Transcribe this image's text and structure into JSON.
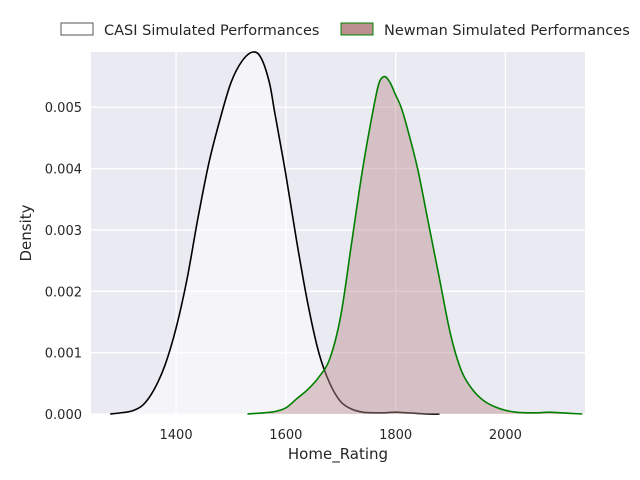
{
  "chart_data": {
    "type": "area",
    "title": "",
    "xlabel": "Home_Rating",
    "ylabel": "Density",
    "xlim": [
      1245,
      2145
    ],
    "ylim": [
      0,
      0.0059
    ],
    "xticks": [
      1400,
      1600,
      1800,
      2000
    ],
    "yticks": [
      0.0,
      0.001,
      0.002,
      0.003,
      0.004,
      0.005
    ],
    "ytick_labels": [
      "0.000",
      "0.001",
      "0.002",
      "0.003",
      "0.004",
      "0.005"
    ],
    "grid": true,
    "legend_position": "top",
    "series": [
      {
        "name": "CASI Simulated Performances",
        "line_color": "#000000",
        "fill_color": "#ffffff",
        "fill_opacity": 0.5,
        "x": [
          1280,
          1300,
          1320,
          1340,
          1360,
          1380,
          1400,
          1420,
          1440,
          1460,
          1480,
          1500,
          1520,
          1540,
          1555,
          1570,
          1580,
          1600,
          1620,
          1640,
          1660,
          1680,
          1700,
          1720,
          1740,
          1760,
          1780,
          1800,
          1820,
          1840,
          1860,
          1880
        ],
        "y": [
          0.0,
          2e-05,
          5e-05,
          0.00015,
          0.0004,
          0.0008,
          0.0014,
          0.0022,
          0.0032,
          0.0041,
          0.0048,
          0.0054,
          0.00575,
          0.0059,
          0.0058,
          0.0054,
          0.0049,
          0.0039,
          0.0028,
          0.0018,
          0.001,
          0.0005,
          0.0002,
          8e-05,
          3e-05,
          2e-05,
          2e-05,
          3e-05,
          2e-05,
          1e-05,
          0.0,
          0.0
        ]
      },
      {
        "name": "Newman Simulated Performances",
        "line_color": "#008000",
        "fill_color": "#bc8f8f",
        "fill_opacity": 0.45,
        "x": [
          1530,
          1560,
          1580,
          1600,
          1620,
          1640,
          1660,
          1680,
          1700,
          1720,
          1740,
          1760,
          1770,
          1780,
          1790,
          1800,
          1810,
          1820,
          1840,
          1860,
          1880,
          1900,
          1920,
          1940,
          1960,
          1980,
          2000,
          2020,
          2040,
          2060,
          2080,
          2100,
          2120,
          2140
        ],
        "y": [
          0.0,
          2e-05,
          4e-05,
          0.0001,
          0.00025,
          0.0004,
          0.0006,
          0.0009,
          0.0016,
          0.0028,
          0.004,
          0.005,
          0.0054,
          0.0055,
          0.0054,
          0.0052,
          0.005,
          0.0047,
          0.004,
          0.0031,
          0.0022,
          0.0013,
          0.0007,
          0.0004,
          0.00022,
          0.00012,
          6e-05,
          3e-05,
          2e-05,
          2e-05,
          3e-05,
          2e-05,
          1e-05,
          0.0
        ]
      }
    ]
  }
}
